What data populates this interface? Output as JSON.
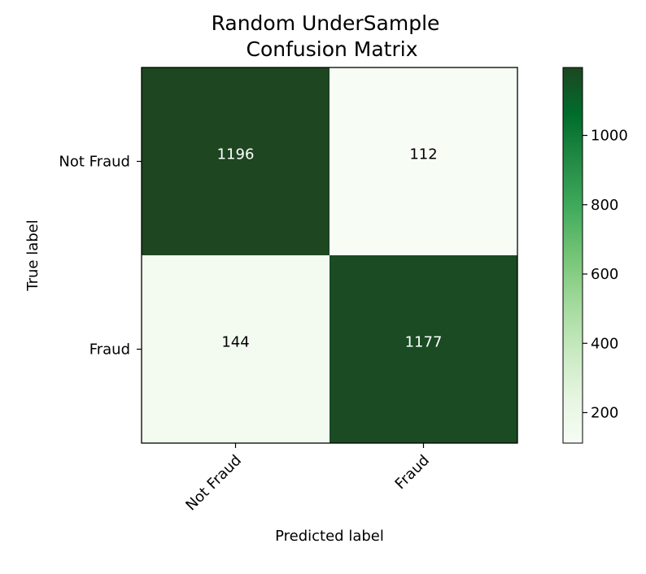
{
  "chart_data": {
    "type": "heatmap",
    "title_lines": [
      "Random UnderSample",
      "Confusion Matrix"
    ],
    "xlabel": "Predicted label",
    "ylabel": "True label",
    "x_categories": [
      "Not Fraud",
      "Fraud"
    ],
    "y_categories": [
      "Not Fraud",
      "Fraud"
    ],
    "matrix": [
      [
        1196,
        112
      ],
      [
        144,
        1177
      ]
    ],
    "colormap": "Greens",
    "color_range": [
      112,
      1196
    ],
    "colorbar_ticks": [
      200,
      400,
      600,
      800,
      1000
    ],
    "grid": false
  },
  "colors": {
    "low": "#f7fcf5",
    "high": "#1e4621",
    "text_dark": "#000000",
    "text_light": "#ffffff"
  }
}
